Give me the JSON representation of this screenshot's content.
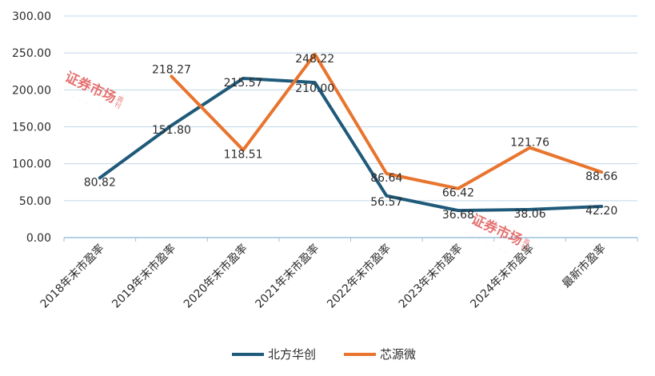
{
  "chart_data": {
    "type": "line",
    "categories": [
      "2018年末市盈率",
      "2019年末市盈率",
      "2020年末市盈率",
      "2021年末市盈率",
      "2022年末市盈率",
      "2023年末市盈率",
      "2024年末市盈率",
      "最新市盈率"
    ],
    "y_tick_labels": [
      "0.00",
      "50.00",
      "100.00",
      "150.00",
      "200.00",
      "250.00",
      "300.00"
    ],
    "ylim": [
      0,
      300
    ],
    "grid": true,
    "legend_position": "bottom",
    "series": [
      {
        "name": "北方华创",
        "color": "#1f5a7a",
        "values": [
          80.82,
          151.8,
          215.57,
          210.0,
          56.57,
          36.68,
          38.06,
          42.2
        ],
        "labels": [
          "80.82",
          "151.80",
          "215.57",
          "210.00",
          "56.57",
          "36.68",
          "38.06",
          "42.20"
        ]
      },
      {
        "name": "芯源微",
        "color": "#e8742e",
        "values": [
          null,
          218.27,
          118.51,
          248.22,
          86.64,
          66.42,
          121.76,
          88.66
        ],
        "labels": [
          "",
          "218.27",
          "118.51",
          "248.22",
          "86.64",
          "66.42",
          "121.76",
          "88.66"
        ]
      }
    ]
  },
  "watermark": {
    "text": "证券市场",
    "side_text": "周刊",
    "dots": "· · · · · · ·",
    "color": "#e05050"
  }
}
